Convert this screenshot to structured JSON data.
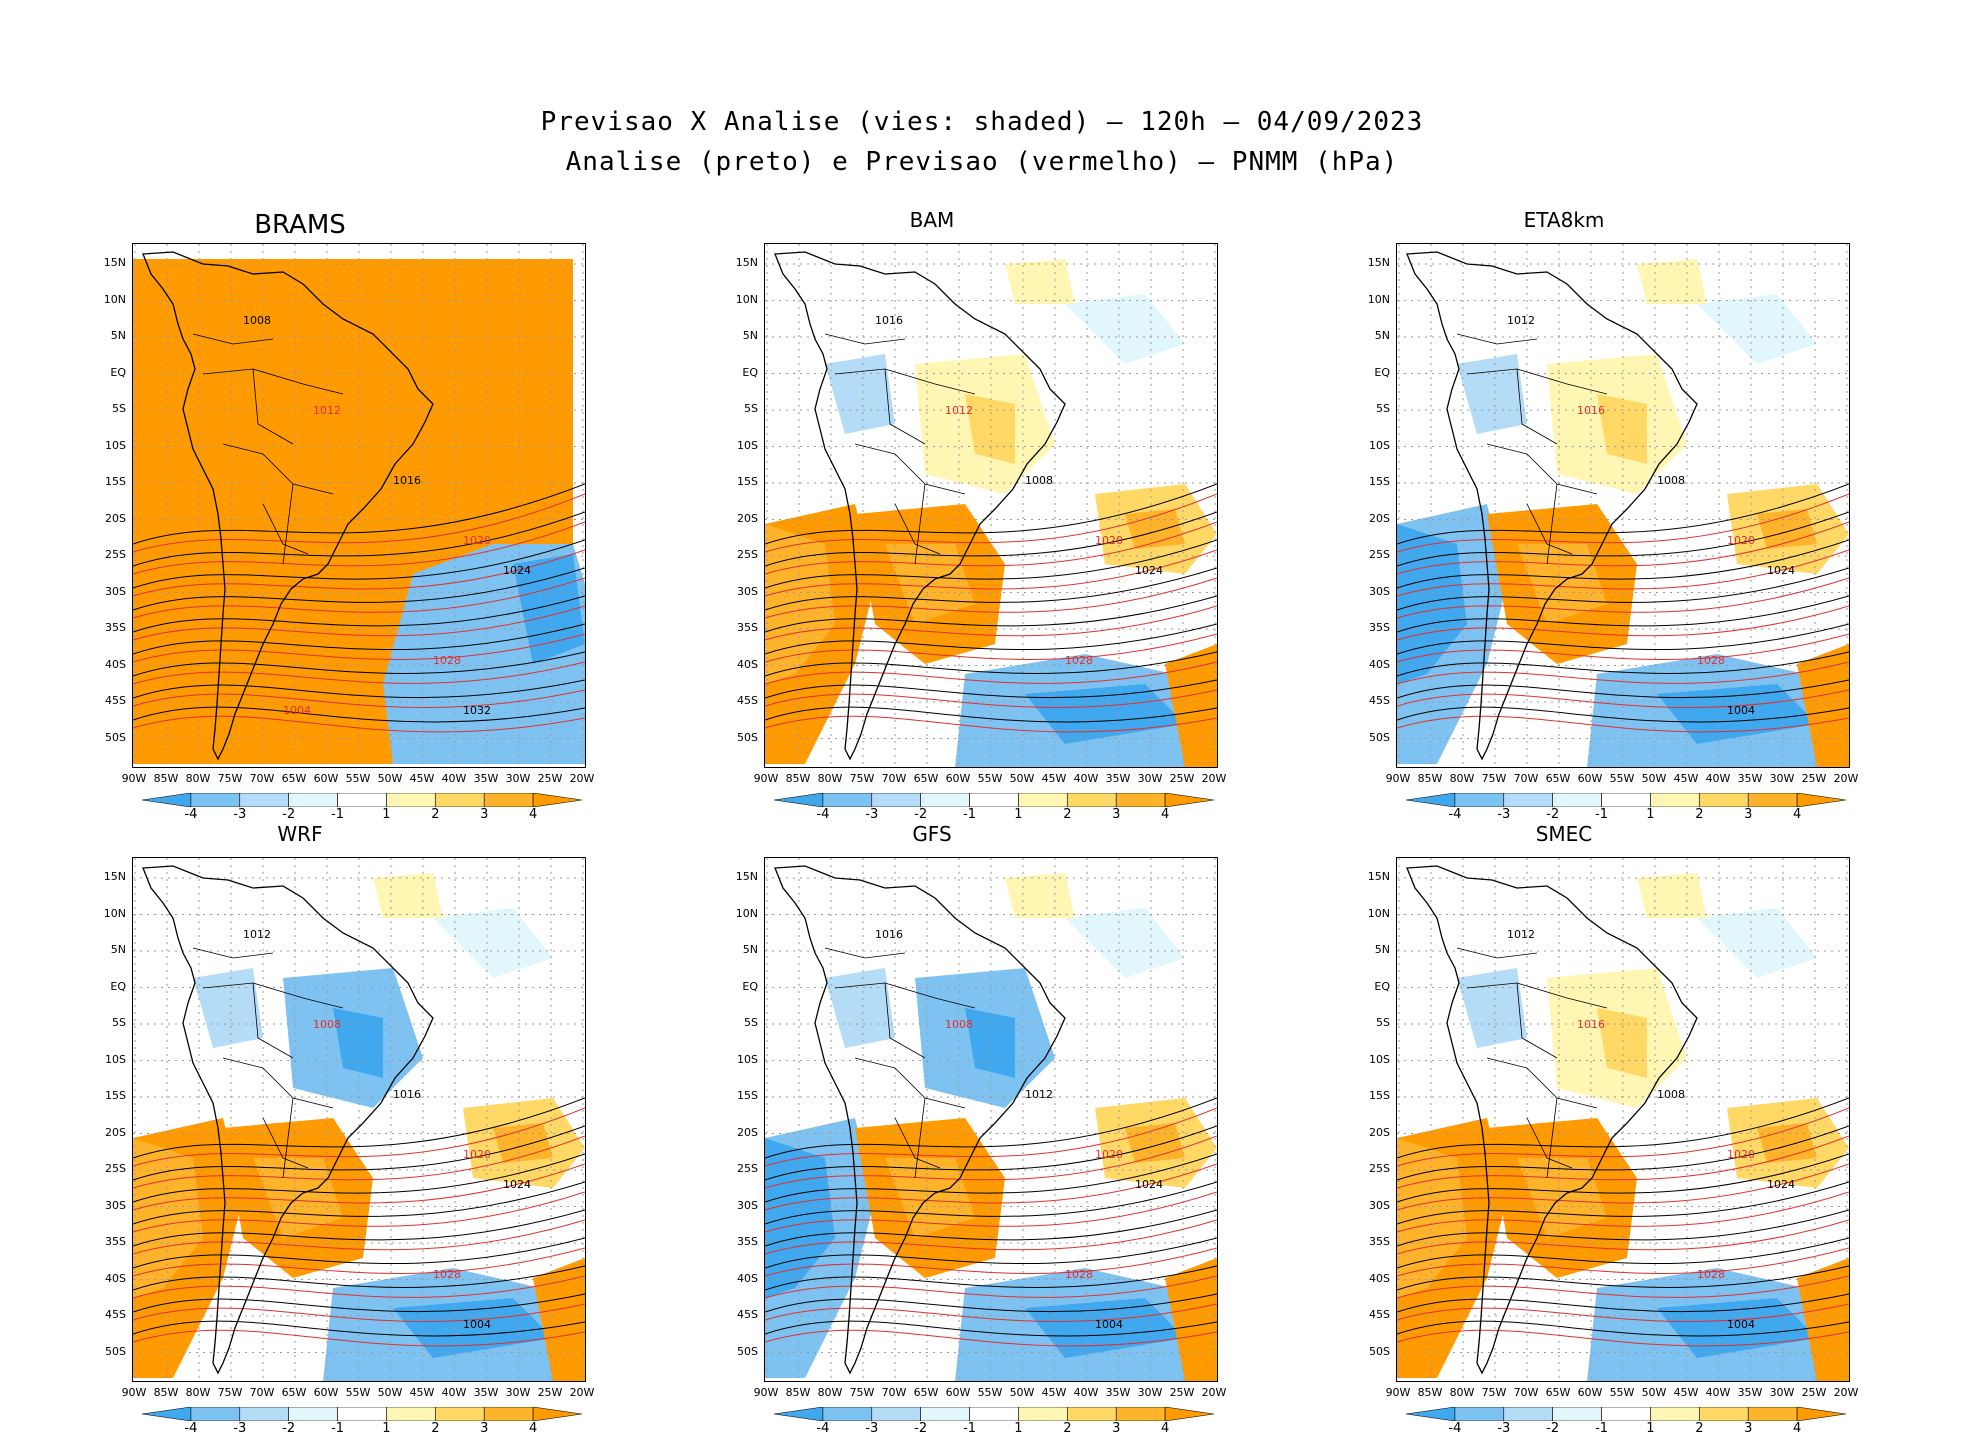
{
  "title": {
    "line1": "Previsao X Analise (vies: shaded) — 120h — 04/09/2023",
    "line2": "Analise (preto) e Previsao (vermelho) — PNMM (hPa)"
  },
  "lat_labels": [
    "15N",
    "10N",
    "5N",
    "EQ",
    "5S",
    "10S",
    "15S",
    "20S",
    "25S",
    "30S",
    "35S",
    "40S",
    "45S",
    "50S"
  ],
  "lon_labels": [
    "90W",
    "85W",
    "80W",
    "75W",
    "70W",
    "65W",
    "60W",
    "55W",
    "50W",
    "45W",
    "40W",
    "35W",
    "30W",
    "25W",
    "20W"
  ],
  "colorbar": {
    "labels": [
      "-4",
      "-3",
      "-2",
      "-1",
      "1",
      "2",
      "3",
      "4"
    ],
    "colors": [
      "#3fa8ee",
      "#7ec2f2",
      "#b5dcf6",
      "#e2f7fb",
      "#ffffff",
      "#fff6b3",
      "#ffd865",
      "#ffb32a",
      "#ff9a00"
    ]
  },
  "panels": [
    {
      "name": "BRAMS",
      "background": "orange"
    },
    {
      "name": "BAM",
      "background": "mixed"
    },
    {
      "name": "ETA8km",
      "background": "mixed"
    },
    {
      "name": "WRF",
      "background": "mixed"
    },
    {
      "name": "GFS",
      "background": "mixed"
    },
    {
      "name": "SMEC",
      "background": "mixed"
    }
  ],
  "contour_labels": {
    "BRAMS": [
      "1008",
      "1012",
      "1016",
      "1020",
      "1024",
      "1028",
      "1032",
      "1004"
    ],
    "BAM": [
      "1016",
      "1012",
      "1008",
      "1020",
      "1024",
      "1028"
    ],
    "ETA8km": [
      "1012",
      "1016",
      "1008",
      "1020",
      "1024",
      "1028",
      "1004"
    ],
    "WRF": [
      "1012",
      "1008",
      "1016",
      "1020",
      "1024",
      "1028",
      "1004"
    ],
    "GFS": [
      "1016",
      "1008",
      "1012",
      "1020",
      "1024",
      "1028",
      "1004"
    ],
    "SMEC": [
      "1012",
      "1016",
      "1008",
      "1020",
      "1024",
      "1028",
      "1004"
    ]
  }
}
